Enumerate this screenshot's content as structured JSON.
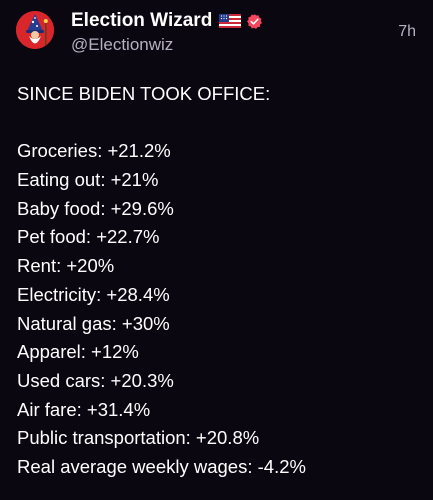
{
  "post": {
    "author": {
      "display_name": "Election Wizard",
      "handle": "@Electionwiz",
      "badges": [
        "us-flag-icon",
        "verified-badge-icon"
      ],
      "verified_color": "#f4465c"
    },
    "timestamp": "7h",
    "headline": "SINCE BIDEN TOOK OFFICE:",
    "lines": [
      "Groceries: +21.2%",
      "Eating out: +21%",
      "Baby food: +29.6%",
      "Pet food: +22.7%",
      "Rent: +20%",
      "Electricity: +28.4%",
      "Natural gas: +30%",
      "Apparel: +12%",
      "Used cars: +20.3%",
      "Air fare: +31.4%",
      "Public transportation: +20.8%",
      "Real average weekly wages: -4.2%"
    ]
  },
  "colors": {
    "background": "#0a0711",
    "text": "#ffffff",
    "muted": "#b6b1c2",
    "avatar_bg": "#d8262b"
  }
}
